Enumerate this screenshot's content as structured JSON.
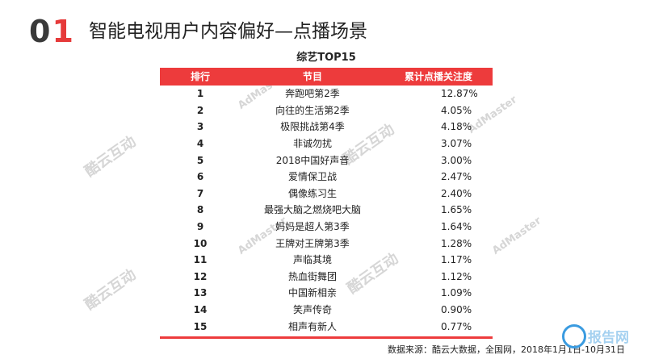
{
  "header": {
    "section_num_a": "0",
    "section_num_b": "1",
    "title": "智能电视用户内容偏好—点播场景"
  },
  "table": {
    "caption": "综艺TOP15",
    "columns": [
      "排行",
      "节目",
      "累计点播关注度"
    ],
    "rows": [
      {
        "rank": "1",
        "program": "奔跑吧第2季",
        "value": "12.87%"
      },
      {
        "rank": "2",
        "program": "向往的生活第2季",
        "value": "4.05%"
      },
      {
        "rank": "3",
        "program": "极限挑战第4季",
        "value": "4.18%"
      },
      {
        "rank": "4",
        "program": "非诚勿扰",
        "value": "3.07%"
      },
      {
        "rank": "5",
        "program": "2018中国好声音",
        "value": "3.00%"
      },
      {
        "rank": "6",
        "program": "爱情保卫战",
        "value": "2.47%"
      },
      {
        "rank": "7",
        "program": "偶像练习生",
        "value": "2.40%"
      },
      {
        "rank": "8",
        "program": "最强大脑之燃烧吧大脑",
        "value": "1.65%"
      },
      {
        "rank": "9",
        "program": "妈妈是超人第3季",
        "value": "1.64%"
      },
      {
        "rank": "10",
        "program": "王牌对王牌第3季",
        "value": "1.28%"
      },
      {
        "rank": "11",
        "program": "声临其境",
        "value": "1.17%"
      },
      {
        "rank": "12",
        "program": "热血街舞团",
        "value": "1.12%"
      },
      {
        "rank": "13",
        "program": "中国新相亲",
        "value": "1.09%"
      },
      {
        "rank": "14",
        "program": "笑声传奇",
        "value": "0.90%"
      },
      {
        "rank": "15",
        "program": "相声有新人",
        "value": "0.77%"
      }
    ]
  },
  "source": "数据来源：酷云大数据，全国网，2018年1月1日-10月31日",
  "watermarks": {
    "kuyun": "酷云互动",
    "admaster": "AdMaster"
  },
  "corner_watermark": "报告网",
  "colors": {
    "accent_red": "#ed3b3c",
    "watermark_gray": "#d6d6d6",
    "corner_blue": "#3a9be0"
  }
}
